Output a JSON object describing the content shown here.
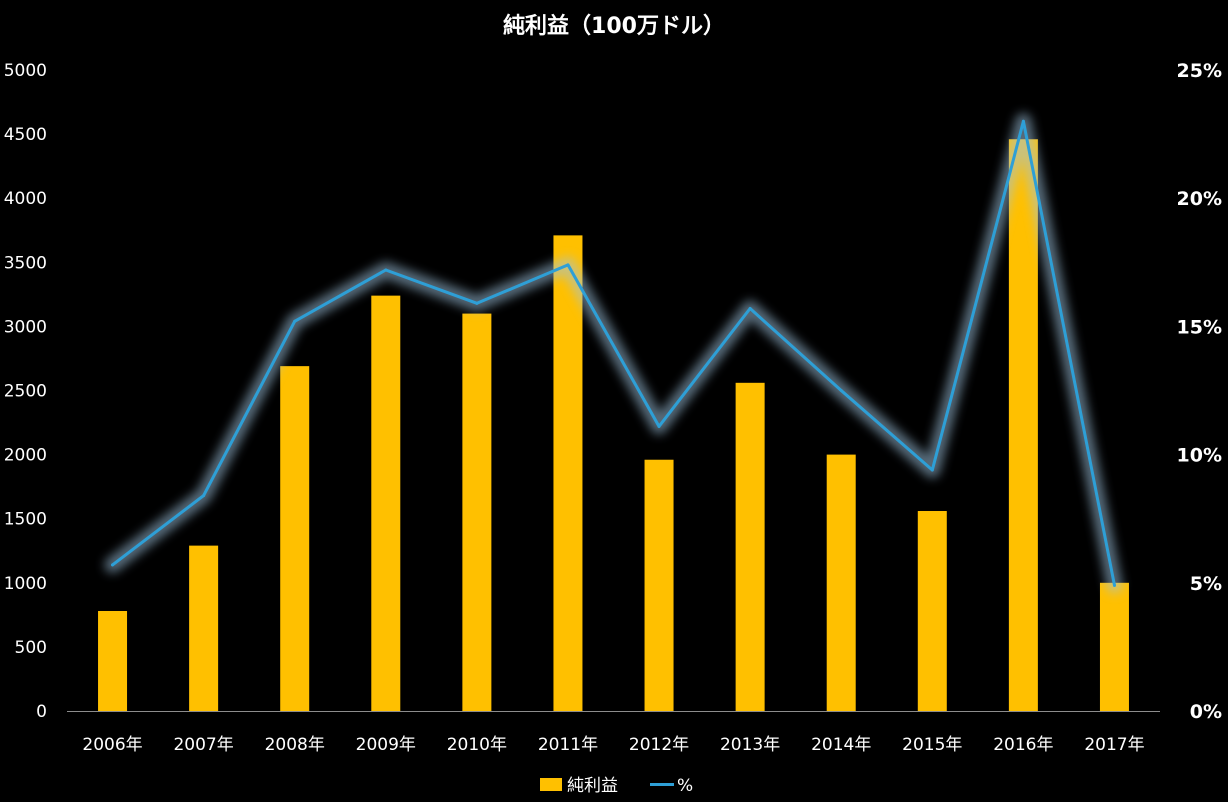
{
  "chart_data": {
    "type": "bar",
    "title": "純利益（100万ドル）",
    "categories": [
      "2006年",
      "2007年",
      "2008年",
      "2009年",
      "2010年",
      "2011年",
      "2012年",
      "2013年",
      "2014年",
      "2015年",
      "2016年",
      "2017年"
    ],
    "series": [
      {
        "name": "純利益",
        "type": "bar",
        "axis": "left",
        "color": "#FFC000",
        "values": [
          780,
          1290,
          2690,
          3240,
          3100,
          3710,
          1960,
          2560,
          2000,
          1560,
          4460,
          1000
        ]
      },
      {
        "name": "%",
        "type": "line",
        "axis": "right",
        "color": "#2E9FD6",
        "values": [
          5.7,
          8.4,
          15.2,
          17.2,
          15.9,
          17.4,
          11.1,
          15.7,
          12.5,
          9.4,
          23.0,
          4.9
        ]
      }
    ],
    "y_left": {
      "range": [
        0,
        5000
      ],
      "ticks": [
        0,
        500,
        1000,
        1500,
        2000,
        2500,
        3000,
        3500,
        4000,
        4500,
        5000
      ],
      "tick_labels": [
        "0",
        "500",
        "1000",
        "1500",
        "2000",
        "2500",
        "3000",
        "3500",
        "4000",
        "4500",
        "5000"
      ]
    },
    "y_right": {
      "range": [
        0,
        25
      ],
      "ticks": [
        0,
        5,
        10,
        15,
        20,
        25
      ],
      "tick_labels": [
        "0%",
        "5%",
        "10%",
        "15%",
        "20%",
        "25%"
      ]
    },
    "grid": false,
    "legend": {
      "position": "bottom"
    }
  }
}
